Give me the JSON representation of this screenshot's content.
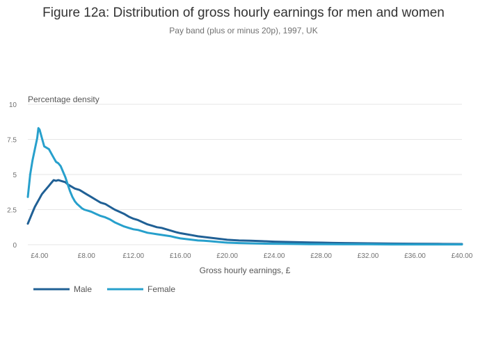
{
  "chart_data": {
    "type": "line",
    "title": "Figure 12a: Distribution of gross hourly earnings for men and women",
    "subtitle": "Pay band (plus or minus 20p), 1997, UK",
    "xlabel": "Gross hourly earnings, £",
    "ylabel": "Percentage density",
    "xlim": [
      3.0,
      40.0
    ],
    "ylim": [
      0,
      10
    ],
    "x_ticks": [
      {
        "value": 4,
        "label": "£4.00"
      },
      {
        "value": 8,
        "label": "£8.00"
      },
      {
        "value": 12,
        "label": "£12.00"
      },
      {
        "value": 16,
        "label": "£16.00"
      },
      {
        "value": 20,
        "label": "£20.00"
      },
      {
        "value": 24,
        "label": "£24.00"
      },
      {
        "value": 28,
        "label": "£28.00"
      },
      {
        "value": 32,
        "label": "£32.00"
      },
      {
        "value": 36,
        "label": "£36.00"
      },
      {
        "value": 40,
        "label": "£40.00"
      }
    ],
    "y_ticks": [
      {
        "value": 0,
        "label": "0"
      },
      {
        "value": 2.5,
        "label": "2.5"
      },
      {
        "value": 5,
        "label": "5"
      },
      {
        "value": 7.5,
        "label": "7.5"
      },
      {
        "value": 10,
        "label": "10"
      }
    ],
    "grid": true,
    "legend_position": "bottom-left",
    "series": [
      {
        "name": "Male",
        "color": "#206095",
        "x": [
          3.0,
          3.2,
          3.4,
          3.6,
          3.8,
          4.0,
          4.2,
          4.4,
          4.6,
          4.8,
          5.0,
          5.2,
          5.4,
          5.6,
          5.8,
          6.0,
          6.2,
          6.4,
          6.6,
          6.8,
          7.0,
          7.2,
          7.4,
          7.6,
          7.8,
          8.0,
          8.4,
          8.8,
          9.2,
          9.6,
          10.0,
          10.4,
          10.8,
          11.2,
          11.6,
          12.0,
          12.4,
          12.8,
          13.2,
          13.6,
          14.0,
          14.4,
          14.8,
          15.2,
          15.6,
          16.0,
          16.5,
          17.0,
          17.5,
          18.0,
          18.5,
          19.0,
          19.5,
          20.0,
          21.0,
          22.0,
          23.0,
          24.0,
          25.0,
          26.0,
          27.0,
          28.0,
          29.0,
          30.0,
          32.0,
          34.0,
          36.0,
          38.0,
          40.0
        ],
        "values": [
          1.5,
          1.9,
          2.3,
          2.7,
          3.0,
          3.3,
          3.6,
          3.8,
          4.0,
          4.2,
          4.4,
          4.6,
          4.55,
          4.6,
          4.55,
          4.5,
          4.45,
          4.3,
          4.2,
          4.1,
          4.0,
          3.95,
          3.9,
          3.8,
          3.7,
          3.6,
          3.4,
          3.2,
          3.0,
          2.9,
          2.7,
          2.5,
          2.35,
          2.2,
          2.0,
          1.85,
          1.75,
          1.6,
          1.45,
          1.35,
          1.25,
          1.2,
          1.1,
          1.0,
          0.9,
          0.82,
          0.75,
          0.68,
          0.6,
          0.55,
          0.5,
          0.45,
          0.4,
          0.35,
          0.3,
          0.28,
          0.25,
          0.22,
          0.2,
          0.18,
          0.16,
          0.15,
          0.13,
          0.12,
          0.1,
          0.08,
          0.07,
          0.06,
          0.05
        ]
      },
      {
        "name": "Female",
        "color": "#27a0cc",
        "x": [
          3.0,
          3.2,
          3.4,
          3.6,
          3.8,
          3.9,
          4.0,
          4.2,
          4.4,
          4.6,
          4.8,
          5.0,
          5.2,
          5.4,
          5.6,
          5.8,
          6.0,
          6.2,
          6.4,
          6.6,
          6.8,
          7.0,
          7.2,
          7.4,
          7.6,
          7.8,
          8.0,
          8.4,
          8.8,
          9.2,
          9.6,
          10.0,
          10.4,
          10.8,
          11.2,
          11.6,
          12.0,
          12.4,
          12.8,
          13.2,
          13.6,
          14.0,
          14.4,
          14.8,
          15.2,
          15.6,
          16.0,
          16.5,
          17.0,
          17.5,
          18.0,
          18.5,
          19.0,
          19.5,
          20.0,
          21.0,
          22.0,
          23.0,
          24.0,
          25.0,
          26.0,
          27.0,
          28.0,
          30.0,
          32.0,
          34.0,
          36.0,
          38.0,
          40.0
        ],
        "values": [
          3.4,
          5.0,
          6.0,
          6.8,
          7.6,
          8.3,
          8.2,
          7.6,
          7.0,
          6.9,
          6.8,
          6.5,
          6.2,
          5.9,
          5.8,
          5.6,
          5.2,
          4.8,
          4.3,
          3.8,
          3.4,
          3.1,
          2.9,
          2.75,
          2.6,
          2.5,
          2.45,
          2.35,
          2.2,
          2.05,
          1.95,
          1.8,
          1.6,
          1.45,
          1.3,
          1.2,
          1.1,
          1.05,
          0.95,
          0.85,
          0.8,
          0.75,
          0.7,
          0.65,
          0.6,
          0.52,
          0.45,
          0.4,
          0.35,
          0.3,
          0.28,
          0.25,
          0.22,
          0.18,
          0.15,
          0.12,
          0.1,
          0.08,
          0.07,
          0.06,
          0.05,
          0.04,
          0.04,
          0.03,
          0.03,
          0.02,
          0.02,
          0.02,
          0.02
        ]
      }
    ]
  }
}
